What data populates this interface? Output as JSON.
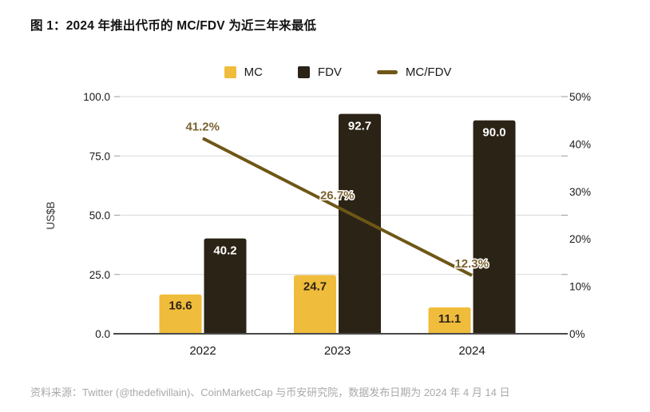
{
  "page": {
    "source": "资料来源：Twitter (@thedefivillain)、CoinMarketCap 与币安研究院，数据发布日期为 2024 年 4 月 14 日"
  },
  "colors": {
    "mc": "#F0BC3B",
    "fdv": "#2B2416",
    "line": "#6E5716",
    "line_label": "#7B6230",
    "grid": "#D9D9D9",
    "tick": "#9B9B9B",
    "axis": "#4A4A4A",
    "label_on_yellow": "#2B2416",
    "label_on_dark": "#FFFFFF"
  },
  "chart_data": {
    "type": "bar",
    "title": "图 1：2024 年推出代币的 MC/FDV 为近三年来最低",
    "categories": [
      "2022",
      "2023",
      "2024"
    ],
    "series": [
      {
        "name": "MC",
        "type": "bar",
        "axis": "left",
        "values": [
          16.6,
          24.7,
          11.1
        ]
      },
      {
        "name": "FDV",
        "type": "bar",
        "axis": "left",
        "values": [
          40.2,
          92.7,
          90.0
        ]
      },
      {
        "name": "MC/FDV",
        "type": "line",
        "axis": "right",
        "values": [
          41.2,
          26.7,
          12.3
        ],
        "unit": "%"
      }
    ],
    "left_axis": {
      "label": "US$B",
      "min": 0,
      "max": 100,
      "tick_values": [
        0,
        25,
        50,
        75,
        100
      ],
      "tick_labels": [
        "0.0",
        "25.0",
        "50.0",
        "75.0",
        "100.0"
      ]
    },
    "right_axis": {
      "label": "",
      "min": 0,
      "max": 50,
      "tick_values": [
        0,
        10,
        20,
        30,
        40,
        50
      ],
      "tick_labels": [
        "0%",
        "10%",
        "20%",
        "30%",
        "40%",
        "50%"
      ]
    },
    "legend_position": "top",
    "grid": "horizontal"
  }
}
